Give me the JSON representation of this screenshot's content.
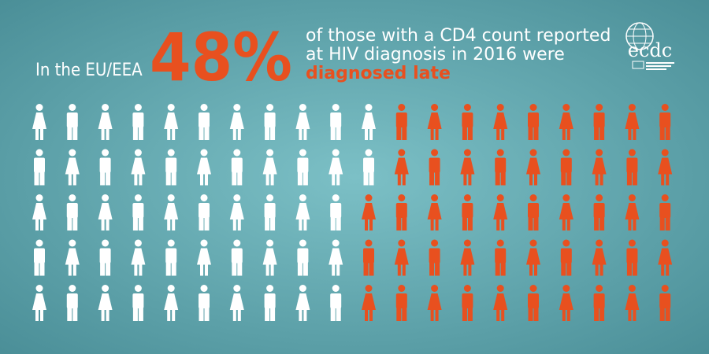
{
  "header": {
    "prefix": "In the EU/EEA",
    "percent": {
      "value": 48,
      "label": "48%"
    },
    "lines": [
      "of those with a CD4 count reported",
      "at HIV diagnosis in 2016 were"
    ],
    "emphasis": "diagnosed late"
  },
  "logo": {
    "text": "ecdc"
  }
}
